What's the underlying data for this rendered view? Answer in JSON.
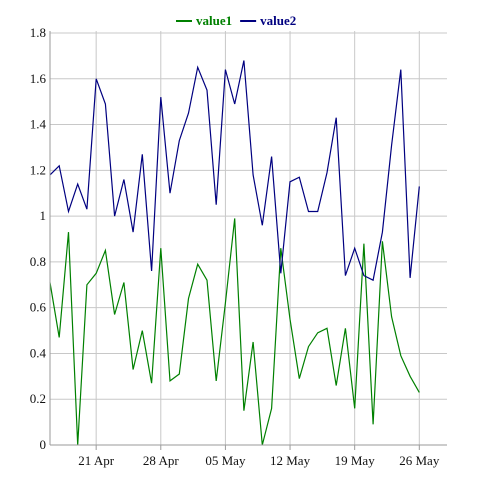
{
  "chart_data": {
    "type": "line",
    "title": "",
    "xlabel": "",
    "ylabel": "",
    "x_start": "2017-04-16",
    "x_end": "2017-05-29",
    "ylim": [
      0,
      1.8
    ],
    "yticks": [
      0,
      0.2,
      0.4,
      0.6,
      0.8,
      1,
      1.2,
      1.4,
      1.6,
      1.8
    ],
    "ytick_labels": [
      "0",
      "0.2",
      "0.4",
      "0.6",
      "0.8",
      "1",
      "1.2",
      "1.4",
      "1.6",
      "1.8"
    ],
    "xticks": [
      {
        "date": "2017-04-21",
        "label": "21 Apr"
      },
      {
        "date": "2017-04-28",
        "label": "28 Apr"
      },
      {
        "date": "2017-05-05",
        "label": "05 May"
      },
      {
        "date": "2017-05-12",
        "label": "12 May"
      },
      {
        "date": "2017-05-19",
        "label": "19 May"
      },
      {
        "date": "2017-05-26",
        "label": "26 May"
      }
    ],
    "grid": true,
    "legend_position": "top-center",
    "series": [
      {
        "name": "value1",
        "color": "#008000",
        "points": [
          [
            "2017-04-16",
            0.71
          ],
          [
            "2017-04-17",
            0.47
          ],
          [
            "2017-04-18",
            0.93
          ],
          [
            "2017-04-19",
            0.0
          ],
          [
            "2017-04-20",
            0.7
          ],
          [
            "2017-04-21",
            0.75
          ],
          [
            "2017-04-22",
            0.85
          ],
          [
            "2017-04-23",
            0.57
          ],
          [
            "2017-04-24",
            0.71
          ],
          [
            "2017-04-25",
            0.33
          ],
          [
            "2017-04-26",
            0.5
          ],
          [
            "2017-04-27",
            0.27
          ],
          [
            "2017-04-28",
            0.86
          ],
          [
            "2017-04-29",
            0.28
          ],
          [
            "2017-04-30",
            0.31
          ],
          [
            "2017-05-01",
            0.64
          ],
          [
            "2017-05-02",
            0.79
          ],
          [
            "2017-05-03",
            0.72
          ],
          [
            "2017-05-04",
            0.28
          ],
          [
            "2017-05-05",
            0.62
          ],
          [
            "2017-05-06",
            0.99
          ],
          [
            "2017-05-07",
            0.15
          ],
          [
            "2017-05-08",
            0.45
          ],
          [
            "2017-05-09",
            0.0
          ],
          [
            "2017-05-10",
            0.16
          ],
          [
            "2017-05-11",
            0.86
          ],
          [
            "2017-05-12",
            0.55
          ],
          [
            "2017-05-13",
            0.29
          ],
          [
            "2017-05-14",
            0.43
          ],
          [
            "2017-05-15",
            0.49
          ],
          [
            "2017-05-16",
            0.51
          ],
          [
            "2017-05-17",
            0.26
          ],
          [
            "2017-05-18",
            0.51
          ],
          [
            "2017-05-19",
            0.16
          ],
          [
            "2017-05-20",
            0.88
          ],
          [
            "2017-05-21",
            0.09
          ],
          [
            "2017-05-22",
            0.89
          ],
          [
            "2017-05-23",
            0.56
          ],
          [
            "2017-05-24",
            0.39
          ],
          [
            "2017-05-25",
            0.3
          ],
          [
            "2017-05-26",
            0.23
          ]
        ]
      },
      {
        "name": "value2",
        "color": "#000080",
        "points": [
          [
            "2017-04-16",
            1.18
          ],
          [
            "2017-04-17",
            1.22
          ],
          [
            "2017-04-18",
            1.02
          ],
          [
            "2017-04-19",
            1.14
          ],
          [
            "2017-04-20",
            1.03
          ],
          [
            "2017-04-21",
            1.6
          ],
          [
            "2017-04-22",
            1.49
          ],
          [
            "2017-04-23",
            1.0
          ],
          [
            "2017-04-24",
            1.16
          ],
          [
            "2017-04-25",
            0.93
          ],
          [
            "2017-04-26",
            1.27
          ],
          [
            "2017-04-27",
            0.76
          ],
          [
            "2017-04-28",
            1.52
          ],
          [
            "2017-04-29",
            1.1
          ],
          [
            "2017-04-30",
            1.33
          ],
          [
            "2017-05-01",
            1.45
          ],
          [
            "2017-05-02",
            1.65
          ],
          [
            "2017-05-03",
            1.55
          ],
          [
            "2017-05-04",
            1.05
          ],
          [
            "2017-05-05",
            1.64
          ],
          [
            "2017-05-06",
            1.49
          ],
          [
            "2017-05-07",
            1.68
          ],
          [
            "2017-05-08",
            1.18
          ],
          [
            "2017-05-09",
            0.96
          ],
          [
            "2017-05-10",
            1.26
          ],
          [
            "2017-05-11",
            0.75
          ],
          [
            "2017-05-12",
            1.15
          ],
          [
            "2017-05-13",
            1.17
          ],
          [
            "2017-05-14",
            1.02
          ],
          [
            "2017-05-15",
            1.02
          ],
          [
            "2017-05-16",
            1.19
          ],
          [
            "2017-05-17",
            1.43
          ],
          [
            "2017-05-18",
            0.74
          ],
          [
            "2017-05-19",
            0.86
          ],
          [
            "2017-05-20",
            0.74
          ],
          [
            "2017-05-21",
            0.72
          ],
          [
            "2017-05-22",
            0.93
          ],
          [
            "2017-05-23",
            1.31
          ],
          [
            "2017-05-24",
            1.64
          ],
          [
            "2017-05-25",
            0.73
          ],
          [
            "2017-05-26",
            1.13
          ]
        ]
      }
    ]
  }
}
